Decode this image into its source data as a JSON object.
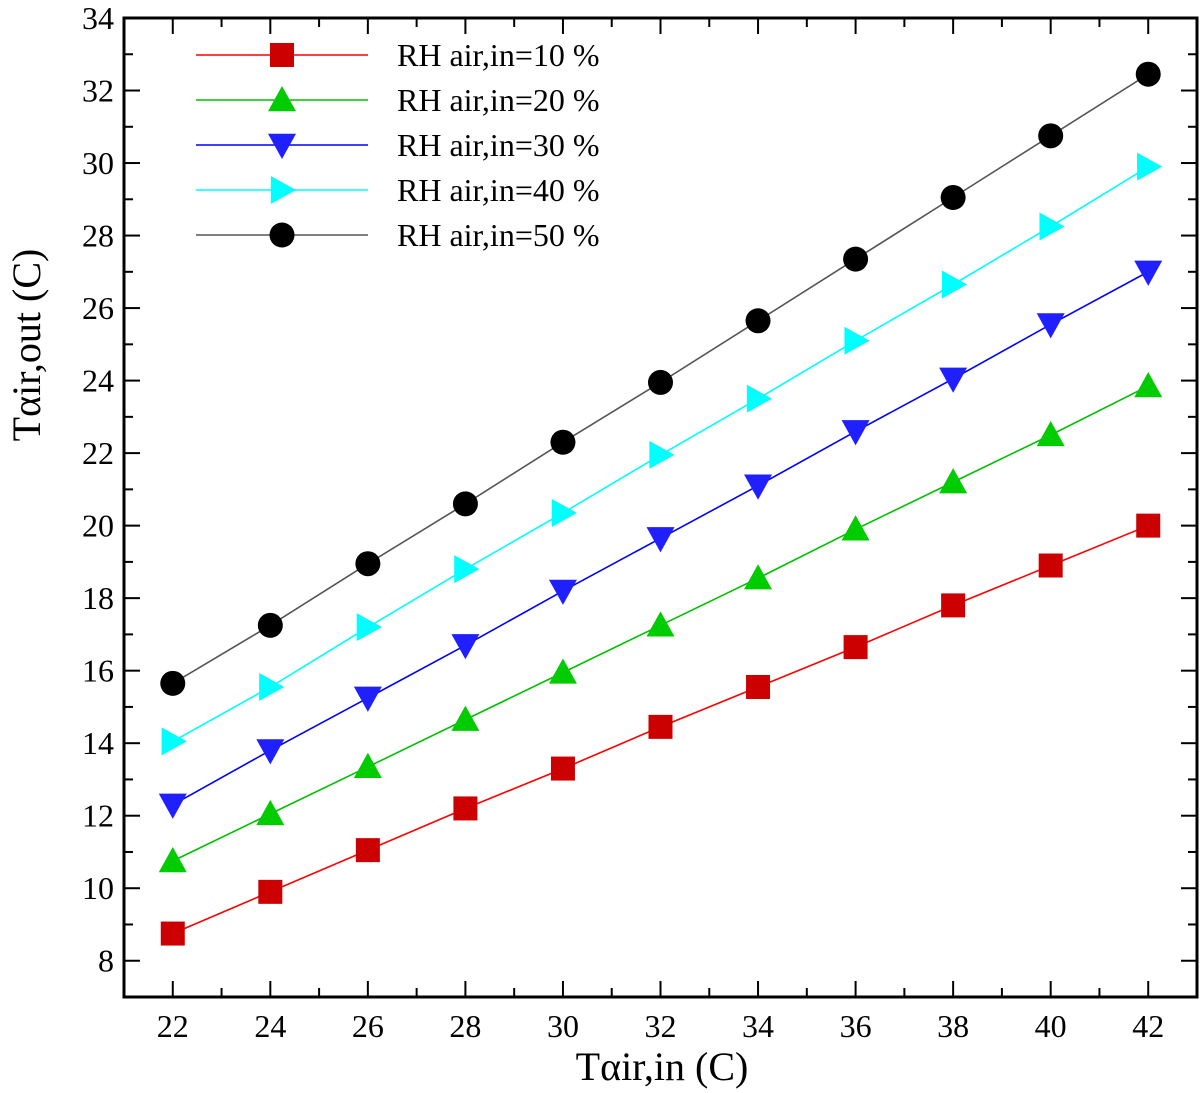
{
  "chart_data": {
    "type": "line",
    "xlabel": "Tαir,in (C)",
    "ylabel": "Tαir,out (C)",
    "xlim": [
      21,
      43
    ],
    "ylim": [
      7,
      34
    ],
    "xticks": [
      22,
      24,
      26,
      28,
      30,
      32,
      34,
      36,
      38,
      40,
      42
    ],
    "yticks": [
      8,
      10,
      12,
      14,
      16,
      18,
      20,
      22,
      24,
      26,
      28,
      30,
      32,
      34
    ],
    "grid": false,
    "legend_position": "top-left",
    "x": [
      22,
      24,
      26,
      28,
      30,
      32,
      34,
      36,
      38,
      40,
      42
    ],
    "series": [
      {
        "name": "RH air,in=10 %",
        "color": "#ff0000",
        "marker_color": "#cc0000",
        "marker": "square",
        "values": [
          8.75,
          9.9,
          11.05,
          12.2,
          13.3,
          14.45,
          15.55,
          16.65,
          17.8,
          18.9,
          20.0
        ]
      },
      {
        "name": "RH air,in=20 %",
        "color": "#00c000",
        "marker_color": "#00cc00",
        "marker": "triangle-up",
        "values": [
          10.75,
          12.05,
          13.35,
          14.65,
          15.95,
          17.25,
          18.55,
          19.9,
          21.2,
          22.5,
          23.85
        ]
      },
      {
        "name": "RH air,in=30 %",
        "color": "#0000ff",
        "marker_color": "#2020ff",
        "marker": "triangle-down",
        "values": [
          12.3,
          13.8,
          15.25,
          16.7,
          18.2,
          19.65,
          21.1,
          22.6,
          24.05,
          25.55,
          27.0
        ]
      },
      {
        "name": "RH air,in=40 %",
        "color": "#00ffff",
        "marker_color": "#00ffff",
        "marker": "triangle-right",
        "values": [
          14.05,
          15.55,
          17.2,
          18.8,
          20.35,
          21.95,
          23.5,
          25.1,
          26.65,
          28.25,
          29.9
        ]
      },
      {
        "name": "RH air,in=50 %",
        "color": "#555555",
        "marker_color": "#000000",
        "marker": "circle",
        "values": [
          15.65,
          17.25,
          18.95,
          20.6,
          22.3,
          23.95,
          25.65,
          27.35,
          29.05,
          30.75,
          32.45
        ]
      }
    ]
  }
}
